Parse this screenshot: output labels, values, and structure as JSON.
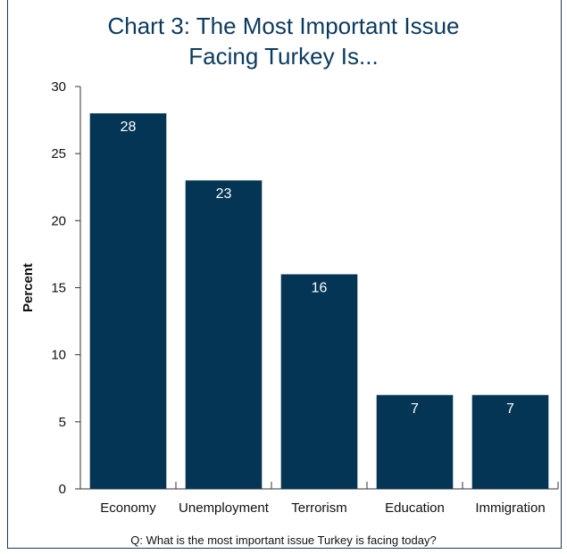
{
  "colors": {
    "bar": "#053555",
    "title": "#0b3a5e",
    "axis": "#333333"
  },
  "chart_data": {
    "type": "bar",
    "title_lines": [
      "Chart 3: The Most Important Issue",
      "Facing Turkey Is..."
    ],
    "ylabel": "Percent",
    "xlabel": "",
    "categories": [
      "Economy",
      "Unemployment",
      "Terrorism",
      "Education",
      "Immigration"
    ],
    "values": [
      28,
      23,
      16,
      7,
      7
    ],
    "value_labels": [
      "28",
      "23",
      "16",
      "7",
      "7"
    ],
    "ylim": [
      0,
      30
    ],
    "yticks": [
      0,
      5,
      10,
      15,
      20,
      25,
      30
    ],
    "ytick_labels": [
      "0",
      "5",
      "10",
      "15",
      "20",
      "25",
      "30"
    ],
    "grid": false,
    "legend": "none"
  },
  "footnote": "Q: What is the most important issue Turkey is facing today?"
}
